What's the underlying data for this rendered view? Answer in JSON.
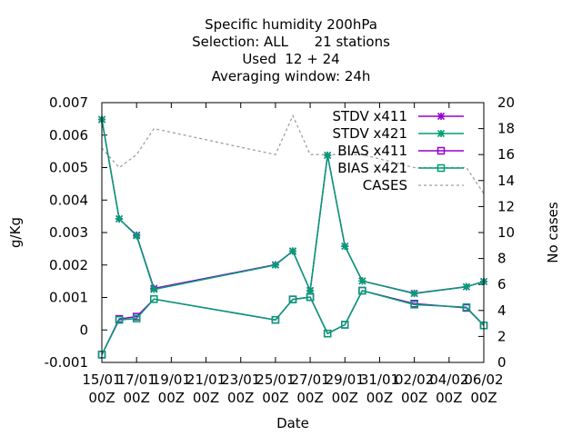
{
  "chart_data": {
    "type": "line",
    "title_lines": [
      "Specific humidity 200hPa",
      "Selection: ALL      21 stations",
      "Used  12 + 24",
      "Averaging window: 24h"
    ],
    "xlabel": "Date",
    "ylabel": "g/Kg",
    "y2label": "No cases",
    "x_ticks": [
      {
        "date": "2015-01-15T00:00",
        "line1": "15/01",
        "line2": "00Z"
      },
      {
        "date": "2015-01-17T00:00",
        "line1": "17/01",
        "line2": "00Z"
      },
      {
        "date": "2015-01-19T00:00",
        "line1": "19/01",
        "line2": "00Z"
      },
      {
        "date": "2015-01-21T00:00",
        "line1": "21/01",
        "line2": "00Z"
      },
      {
        "date": "2015-01-23T00:00",
        "line1": "23/01",
        "line2": "00Z"
      },
      {
        "date": "2015-01-25T00:00",
        "line1": "25/01",
        "line2": "00Z"
      },
      {
        "date": "2015-01-27T00:00",
        "line1": "27/01",
        "line2": "00Z"
      },
      {
        "date": "2015-01-29T00:00",
        "line1": "29/01",
        "line2": "00Z"
      },
      {
        "date": "2015-01-31T00:00",
        "line1": "31/01",
        "line2": "00Z"
      },
      {
        "date": "2015-02-02T00:00",
        "line1": "02/02",
        "line2": "00Z"
      },
      {
        "date": "2015-02-04T00:00",
        "line1": "04/02",
        "line2": "00Z"
      },
      {
        "date": "2015-02-06T00:00",
        "line1": "06/02",
        "line2": "00Z"
      }
    ],
    "xlim": [
      "2015-01-15T00:00",
      "2015-02-06T00:00"
    ],
    "ylim": [
      -0.001,
      0.007
    ],
    "y_ticks": [
      "-0.001",
      "0",
      "0.001",
      "0.002",
      "0.003",
      "0.004",
      "0.005",
      "0.006",
      "0.007"
    ],
    "y2lim": [
      0,
      20
    ],
    "y2_ticks": [
      "0",
      "2",
      "4",
      "6",
      "8",
      "10",
      "12",
      "14",
      "16",
      "18",
      "20"
    ],
    "legend_position": "top-right",
    "series": [
      {
        "name": "STDV x411",
        "axis": "y",
        "color": "#9400d3",
        "marker": "x",
        "points": [
          {
            "x": "2015-01-15T00:00",
            "y": 0.00648
          },
          {
            "x": "2015-01-16T00:00",
            "y": 0.00342
          },
          {
            "x": "2015-01-17T00:00",
            "y": 0.00292
          },
          {
            "x": "2015-01-18T00:00",
            "y": 0.00128
          },
          {
            "x": "2015-01-25T00:00",
            "y": 0.00201
          },
          {
            "x": "2015-01-26T00:00",
            "y": 0.00243
          },
          {
            "x": "2015-01-27T00:00",
            "y": 0.00121
          },
          {
            "x": "2015-01-28T00:00",
            "y": 0.00538
          },
          {
            "x": "2015-01-29T00:00",
            "y": 0.00258
          },
          {
            "x": "2015-01-30T00:00",
            "y": 0.00151
          },
          {
            "x": "2015-02-02T00:00",
            "y": 0.00113
          },
          {
            "x": "2015-02-05T00:00",
            "y": 0.00133
          },
          {
            "x": "2015-02-06T00:00",
            "y": 0.00149
          }
        ]
      },
      {
        "name": "STDV x421",
        "axis": "y",
        "color": "#009e73",
        "marker": "x",
        "points": [
          {
            "x": "2015-01-15T00:00",
            "y": 0.00648
          },
          {
            "x": "2015-01-16T00:00",
            "y": 0.00342
          },
          {
            "x": "2015-01-17T00:00",
            "y": 0.0029
          },
          {
            "x": "2015-01-18T00:00",
            "y": 0.00125
          },
          {
            "x": "2015-01-25T00:00",
            "y": 0.002
          },
          {
            "x": "2015-01-26T00:00",
            "y": 0.00243
          },
          {
            "x": "2015-01-27T00:00",
            "y": 0.00121
          },
          {
            "x": "2015-01-28T00:00",
            "y": 0.00538
          },
          {
            "x": "2015-01-29T00:00",
            "y": 0.00258
          },
          {
            "x": "2015-01-30T00:00",
            "y": 0.00151
          },
          {
            "x": "2015-02-02T00:00",
            "y": 0.00112
          },
          {
            "x": "2015-02-05T00:00",
            "y": 0.00133
          },
          {
            "x": "2015-02-06T00:00",
            "y": 0.00149
          }
        ]
      },
      {
        "name": "BIAS x411",
        "axis": "y",
        "color": "#9400d3",
        "marker": "square",
        "points": [
          {
            "x": "2015-01-15T00:00",
            "y": -0.00076
          },
          {
            "x": "2015-01-16T00:00",
            "y": 0.00034
          },
          {
            "x": "2015-01-17T00:00",
            "y": 0.00041
          },
          {
            "x": "2015-01-18T00:00",
            "y": 0.00095
          },
          {
            "x": "2015-01-25T00:00",
            "y": 0.00031
          },
          {
            "x": "2015-01-26T00:00",
            "y": 0.00094
          },
          {
            "x": "2015-01-27T00:00",
            "y": 0.00101
          },
          {
            "x": "2015-01-28T00:00",
            "y": -0.00011
          },
          {
            "x": "2015-01-29T00:00",
            "y": 0.00016
          },
          {
            "x": "2015-01-30T00:00",
            "y": 0.00121
          },
          {
            "x": "2015-02-02T00:00",
            "y": 0.00081
          },
          {
            "x": "2015-02-05T00:00",
            "y": 0.00068
          },
          {
            "x": "2015-02-06T00:00",
            "y": 0.00014
          }
        ]
      },
      {
        "name": "BIAS x421",
        "axis": "y",
        "color": "#009e73",
        "marker": "square",
        "points": [
          {
            "x": "2015-01-15T00:00",
            "y": -0.00076
          },
          {
            "x": "2015-01-16T00:00",
            "y": 0.00031
          },
          {
            "x": "2015-01-17T00:00",
            "y": 0.00035
          },
          {
            "x": "2015-01-18T00:00",
            "y": 0.00095
          },
          {
            "x": "2015-01-25T00:00",
            "y": 0.00031
          },
          {
            "x": "2015-01-26T00:00",
            "y": 0.00094
          },
          {
            "x": "2015-01-27T00:00",
            "y": 0.00101
          },
          {
            "x": "2015-01-28T00:00",
            "y": -0.00011
          },
          {
            "x": "2015-01-29T00:00",
            "y": 0.00016
          },
          {
            "x": "2015-01-30T00:00",
            "y": 0.00121
          },
          {
            "x": "2015-02-02T00:00",
            "y": 0.00078
          },
          {
            "x": "2015-02-05T00:00",
            "y": 0.0007
          },
          {
            "x": "2015-02-06T00:00",
            "y": 0.00014
          }
        ]
      },
      {
        "name": "CASES",
        "axis": "y2",
        "color": "#a0a0a0",
        "marker": "none",
        "dashed": true,
        "points": [
          {
            "x": "2015-01-15T00:00",
            "y": 16.5
          },
          {
            "x": "2015-01-16T00:00",
            "y": 15.0
          },
          {
            "x": "2015-01-17T00:00",
            "y": 16.0
          },
          {
            "x": "2015-01-18T00:00",
            "y": 18.0
          },
          {
            "x": "2015-01-25T00:00",
            "y": 16.0
          },
          {
            "x": "2015-01-26T00:00",
            "y": 19.0
          },
          {
            "x": "2015-01-27T00:00",
            "y": 16.0
          },
          {
            "x": "2015-01-28T00:00",
            "y": 16.0
          },
          {
            "x": "2015-01-29T00:00",
            "y": 16.0
          },
          {
            "x": "2015-01-30T00:00",
            "y": 16.0
          },
          {
            "x": "2015-02-02T00:00",
            "y": 15.0
          },
          {
            "x": "2015-02-05T00:00",
            "y": 15.0
          },
          {
            "x": "2015-02-06T00:00",
            "y": 13.0
          }
        ]
      }
    ]
  }
}
